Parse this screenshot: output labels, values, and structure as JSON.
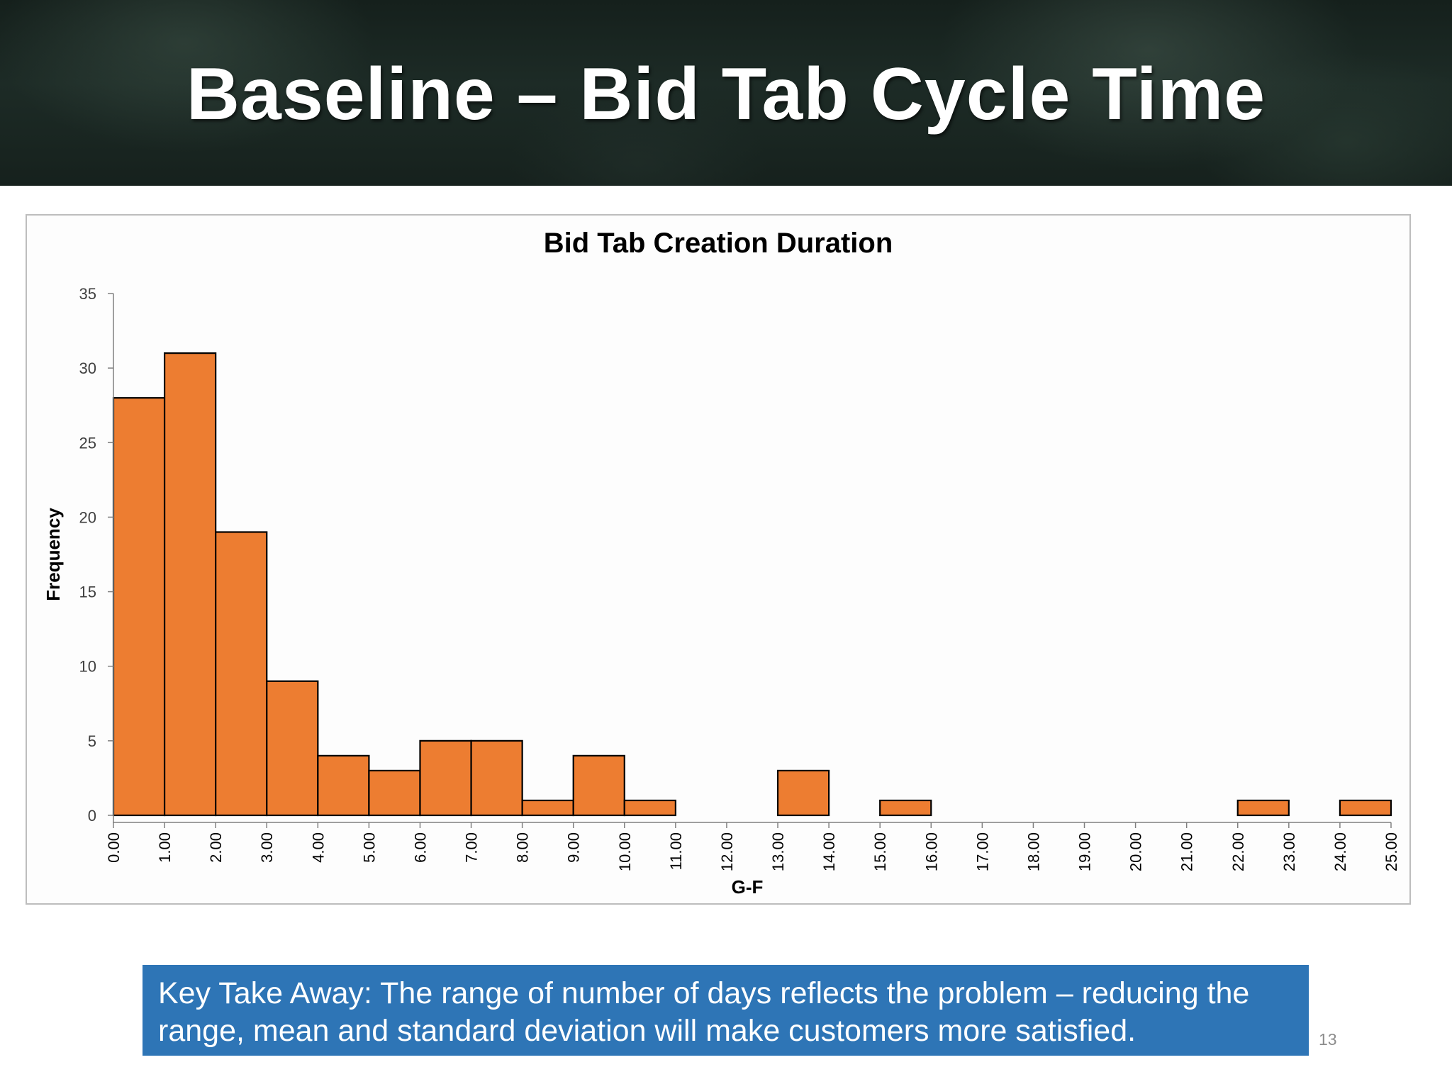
{
  "slide": {
    "title": "Baseline – Bid Tab Cycle Time",
    "takeaway": "Key Take Away: The range of number of days reflects the problem – reducing the range, mean and standard deviation will make customers more satisfied.",
    "page_number": "13"
  },
  "colors": {
    "bar_fill": "#ed7d31",
    "bar_stroke": "#000000",
    "takeaway_bg": "#2e75b6"
  },
  "chart_data": {
    "type": "bar",
    "title": "Bid Tab Creation Duration",
    "xlabel": "G-F",
    "ylabel": "Frequency",
    "ylim": [
      0,
      35
    ],
    "yticks": [
      "0",
      "5",
      "10",
      "15",
      "20",
      "25",
      "30",
      "35"
    ],
    "xticks": [
      "0.00",
      "1.00",
      "2.00",
      "3.00",
      "4.00",
      "5.00",
      "6.00",
      "7.00",
      "8.00",
      "9.00",
      "10.00",
      "11.00",
      "12.00",
      "13.00",
      "14.00",
      "15.00",
      "16.00",
      "17.00",
      "18.00",
      "19.00",
      "20.00",
      "21.00",
      "22.00",
      "23.00",
      "24.00",
      "25.00"
    ],
    "bin_edges": [
      0,
      1,
      2,
      3,
      4,
      5,
      6,
      7,
      8,
      9,
      10,
      11,
      12,
      13,
      14,
      15,
      16,
      17,
      18,
      19,
      20,
      21,
      22,
      23,
      24,
      25
    ],
    "values": [
      28,
      31,
      19,
      9,
      4,
      3,
      5,
      5,
      1,
      4,
      1,
      0,
      0,
      3,
      0,
      1,
      0,
      0,
      0,
      0,
      0,
      0,
      1,
      0,
      1
    ],
    "grid": false,
    "legend": "none"
  }
}
